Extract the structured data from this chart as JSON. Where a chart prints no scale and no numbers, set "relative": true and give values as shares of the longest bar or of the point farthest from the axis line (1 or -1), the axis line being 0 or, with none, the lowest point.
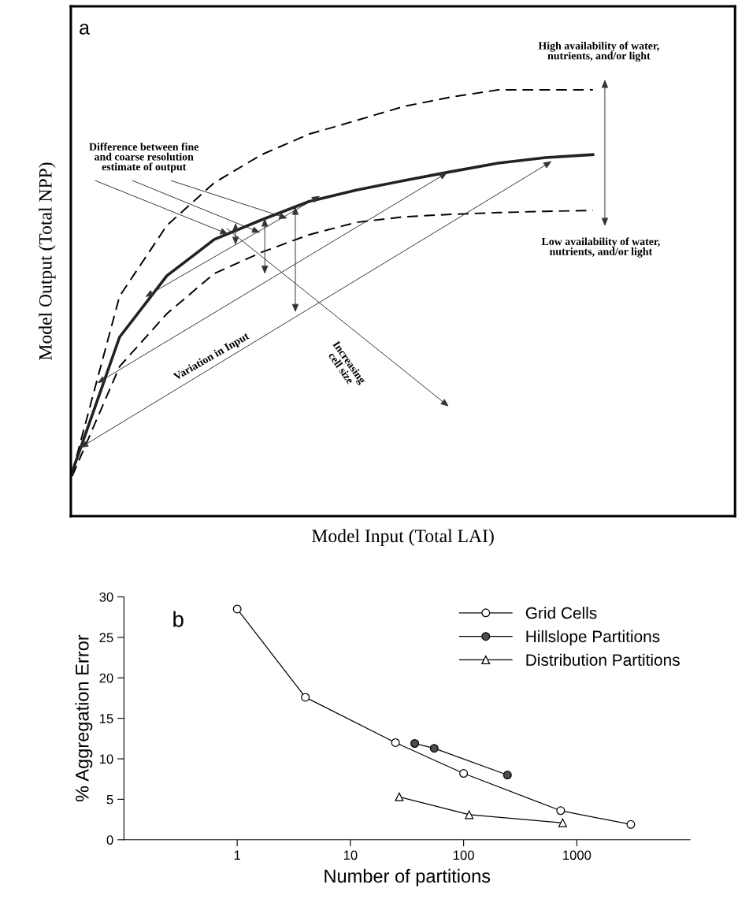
{
  "chart_data": [
    {
      "type": "line",
      "relative": true,
      "xlabel": "Model Input (Total LAI)",
      "ylabel": "Model Output (Total NPP)",
      "tick_labels": false,
      "grid": false,
      "legend": false,
      "marker": "none",
      "categories": [
        null,
        null,
        null,
        null,
        null,
        null,
        null,
        null,
        null,
        null,
        null,
        null
      ],
      "series": [
        {
          "color": "#000000",
          "line_style": "dashed",
          "values": [
            0.102,
            0.516,
            0.682,
            0.782,
            0.848,
            0.896,
            0.928,
            0.961,
            0.983,
            1.0,
            1.0,
            1.0
          ]
        },
        {
          "color": "#222222",
          "line_style": "solid",
          "values": [
            0.104,
            0.42,
            0.564,
            0.649,
            0.695,
            0.738,
            0.765,
            0.787,
            0.808,
            0.828,
            0.841,
            0.848
          ]
        },
        {
          "color": "#000000",
          "line_style": "dashed",
          "values": [
            0.094,
            0.351,
            0.475,
            0.569,
            0.619,
            0.66,
            0.689,
            0.702,
            0.708,
            0.712,
            0.715,
            0.717
          ]
        }
      ],
      "annotations": [
        "a",
        "Difference between fine\nand coarse resolution\nestimate of output",
        "High availability of water,\nnutrients, and/or light",
        "Low availability of water,\nnutrients, and/or light",
        "Variation in Input",
        "Increasing\ncell size"
      ]
    },
    {
      "type": "line",
      "log": "x",
      "xlabel": "Number of partitions",
      "ylabel": "% Aggregation Error",
      "xlim": [
        0.1,
        10000
      ],
      "xticks": [
        1,
        10,
        100,
        1000
      ],
      "ylim": [
        0,
        30
      ],
      "yticks": [
        0,
        5,
        10,
        15,
        20,
        25,
        30
      ],
      "grid": false,
      "legend": "top right",
      "series": [
        {
          "name": "Grid Cells",
          "marker": "circle",
          "color": "#ffffff",
          "x": [
            1,
            4,
            25,
            100,
            720,
            3000
          ],
          "values": [
            28.5,
            17.6,
            12.0,
            8.2,
            3.6,
            1.9
          ]
        },
        {
          "name": "Hillslope Partitions",
          "marker": "circle",
          "color": "#4d4d4d",
          "x": [
            37,
            55,
            244
          ],
          "values": [
            11.9,
            11.3,
            8.0
          ]
        },
        {
          "name": "Distribution Partitions",
          "marker": "triangle",
          "color": "#ffffff",
          "x": [
            27,
            112,
            750
          ],
          "values": [
            5.3,
            3.1,
            2.1
          ]
        }
      ],
      "annotations": [
        "b"
      ]
    }
  ]
}
